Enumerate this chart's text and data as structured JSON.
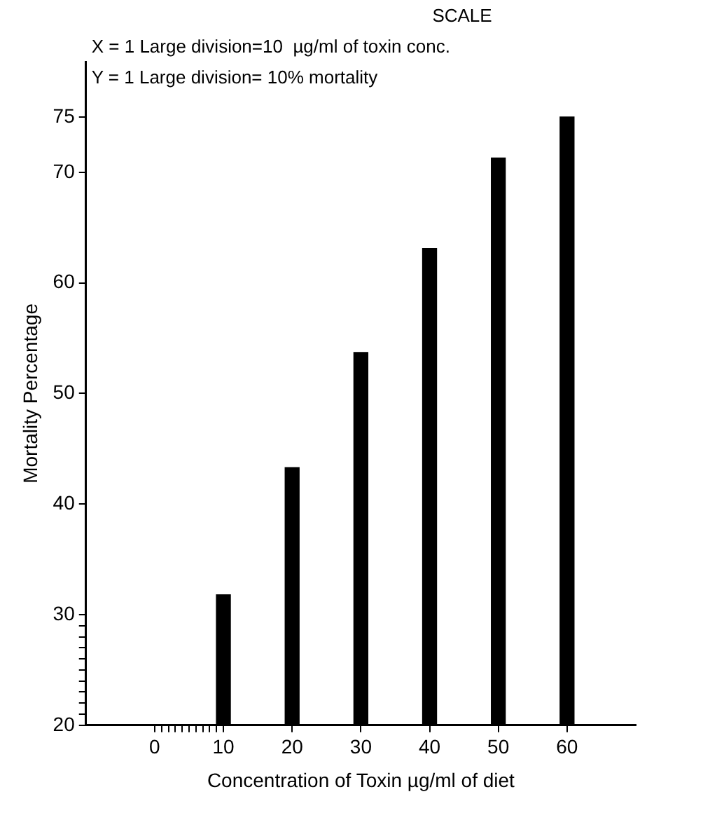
{
  "chart_data": {
    "type": "bar",
    "xlabel": "Concentration of Toxin µg/ml of diet",
    "ylabel": "Mortality Percentage",
    "annotations": [
      "SCALE",
      "X = 1 Large division=10  µg/ml of toxin conc.",
      "Y = 1 Large division= 10% mortality"
    ],
    "x": [
      10,
      20,
      30,
      40,
      50,
      60
    ],
    "values": [
      31.8,
      43.3,
      53.7,
      63.1,
      71.3,
      75
    ],
    "color": "#000000",
    "xlim": [
      -10,
      70
    ],
    "xticks": [
      0,
      {
        "value": 1,
        "label": null
      },
      {
        "value": 2,
        "label": null
      },
      {
        "value": 3,
        "label": null
      },
      {
        "value": 4,
        "label": null
      },
      {
        "value": 5,
        "label": null
      },
      {
        "value": 6,
        "label": null
      },
      {
        "value": 7,
        "label": null
      },
      {
        "value": 8,
        "label": null
      },
      {
        "value": 9,
        "label": null
      },
      10,
      20,
      30,
      40,
      50,
      60
    ],
    "ylim": [
      20,
      80
    ],
    "yticks": [
      20,
      {
        "value": 21,
        "label": null
      },
      {
        "value": 22,
        "label": null
      },
      {
        "value": 23,
        "label": null
      },
      {
        "value": 24,
        "label": null
      },
      {
        "value": 25,
        "label": null
      },
      {
        "value": 26,
        "label": null
      },
      {
        "value": 27,
        "label": null
      },
      {
        "value": 28,
        "label": null
      },
      {
        "value": 29,
        "label": null
      },
      30,
      40,
      50,
      60,
      70,
      75
    ],
    "grid": false,
    "legend": false
  }
}
